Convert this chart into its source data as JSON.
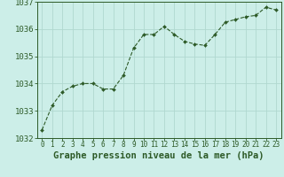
{
  "x": [
    0,
    1,
    2,
    3,
    4,
    5,
    6,
    7,
    8,
    9,
    10,
    11,
    12,
    13,
    14,
    15,
    16,
    17,
    18,
    19,
    20,
    21,
    22,
    23
  ],
  "y": [
    1032.3,
    1033.2,
    1033.7,
    1033.9,
    1034.0,
    1034.0,
    1033.8,
    1033.8,
    1034.3,
    1035.3,
    1035.8,
    1035.8,
    1036.1,
    1035.8,
    1035.55,
    1035.45,
    1035.4,
    1035.8,
    1036.25,
    1036.35,
    1036.45,
    1036.5,
    1036.8,
    1036.7
  ],
  "xlim": [
    -0.5,
    23.5
  ],
  "ylim": [
    1032,
    1037
  ],
  "yticks": [
    1032,
    1033,
    1034,
    1035,
    1036,
    1037
  ],
  "xticks": [
    0,
    1,
    2,
    3,
    4,
    5,
    6,
    7,
    8,
    9,
    10,
    11,
    12,
    13,
    14,
    15,
    16,
    17,
    18,
    19,
    20,
    21,
    22,
    23
  ],
  "line_color": "#2d5a27",
  "marker_color": "#2d5a27",
  "bg_color": "#cceee8",
  "grid_color": "#b0d8d0",
  "xlabel": "Graphe pression niveau de la mer (hPa)",
  "xlabel_color": "#2d5a27",
  "tick_color": "#2d5a27",
  "xlabel_fontsize": 7.5,
  "ytick_fontsize": 6.5,
  "xtick_fontsize": 5.5,
  "spine_color": "#2d5a27"
}
